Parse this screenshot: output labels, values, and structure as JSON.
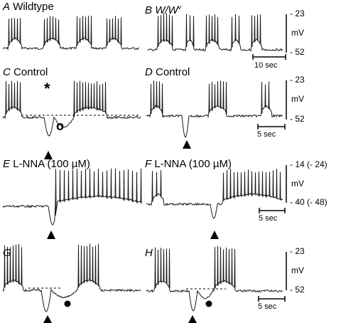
{
  "panels": [
    {
      "id": "A",
      "letter": "A",
      "title": "Wildtype"
    },
    {
      "id": "B",
      "letter": "B",
      "title": "W/W",
      "title_sup": "v"
    },
    {
      "id": "C",
      "letter": "C",
      "title": "Control"
    },
    {
      "id": "D",
      "letter": "D",
      "title": "Control"
    },
    {
      "id": "E",
      "letter": "E",
      "title": "L-NNA (100 µM)"
    },
    {
      "id": "F",
      "letter": "F",
      "title": "L-NNA (100 µM)"
    },
    {
      "id": "G",
      "letter": "G",
      "title": ""
    },
    {
      "id": "H",
      "letter": "H",
      "title": ""
    }
  ],
  "scales": {
    "row1": {
      "top": "- 23",
      "unit": "mV",
      "bottom": "- 52",
      "time": "10 sec"
    },
    "row2": {
      "top": "- 23",
      "unit": "mV",
      "bottom": "- 52",
      "time": "5 sec"
    },
    "row3": {
      "top": "- 14 (- 24)",
      "unit": "mV",
      "bottom": "- 40 (- 48)",
      "time": "5 sec"
    },
    "row4": {
      "top": "- 23",
      "unit": "mV",
      "bottom": "- 52",
      "time": "5 sec"
    }
  },
  "annotations": {
    "asterisk": "*",
    "open_circle": "o"
  },
  "colors": {
    "trace": "#1a1a1a",
    "background": "#ffffff"
  }
}
